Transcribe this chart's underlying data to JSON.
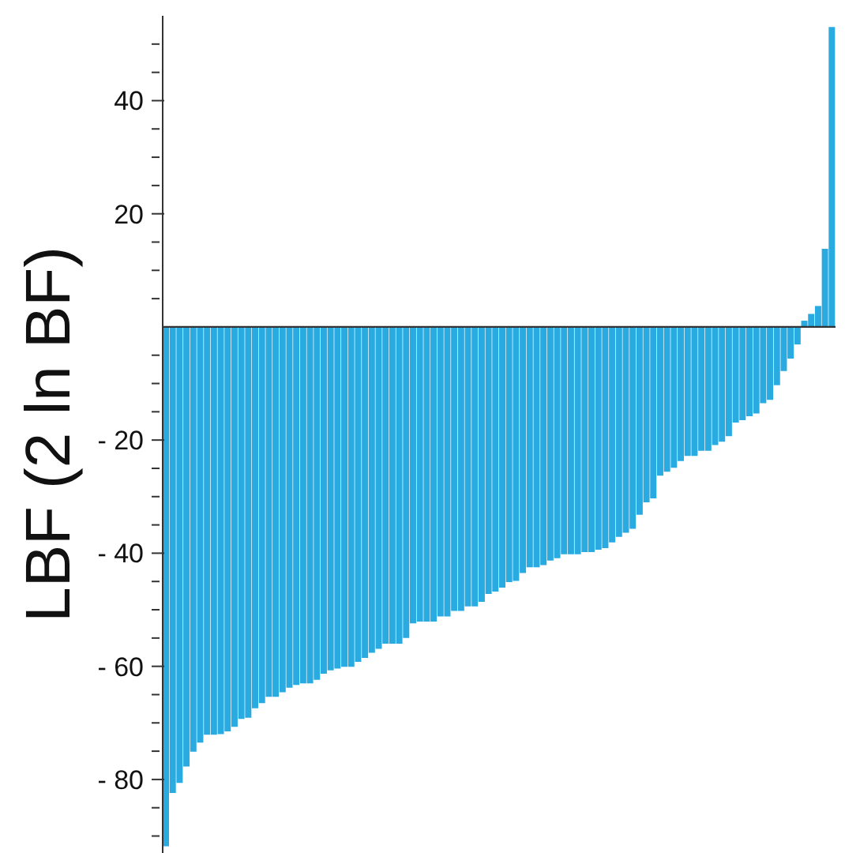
{
  "chart_data": {
    "type": "bar",
    "ylabel": "LBF (2 ln BF)",
    "color": "#29abe2",
    "categories": [
      null,
      null,
      null,
      null,
      null,
      null,
      null,
      null,
      null,
      null,
      null,
      null,
      null,
      null,
      null,
      null,
      null,
      null,
      null,
      null,
      null,
      null,
      null,
      null,
      null,
      null,
      null,
      null,
      null,
      null,
      null,
      null,
      null,
      null,
      null,
      null,
      null,
      null,
      null,
      null,
      null,
      null,
      null,
      null,
      null,
      null,
      null,
      null,
      null,
      null,
      null,
      null,
      null,
      null,
      null,
      null,
      null,
      null,
      null,
      null,
      null,
      null,
      null,
      null,
      null,
      null,
      null,
      null,
      null,
      null,
      null,
      null,
      null,
      null,
      null,
      null,
      null,
      null,
      null,
      null,
      null,
      null,
      null,
      null,
      null,
      null,
      null,
      null,
      null,
      null,
      null,
      null,
      null,
      null,
      null,
      null,
      null,
      null
    ],
    "values": [
      -91.8,
      -82.4,
      -80.6,
      -77.7,
      -75.1,
      -73.5,
      -72.1,
      -72.1,
      -72,
      -71.5,
      -70.7,
      -69.3,
      -69.1,
      -67.4,
      -66.5,
      -65.4,
      -65.4,
      -64.6,
      -63.8,
      -63.3,
      -63,
      -63,
      -62.4,
      -61.3,
      -60.7,
      -60.4,
      -60.1,
      -60.1,
      -59.2,
      -58.5,
      -57.6,
      -56.9,
      -56,
      -56,
      -56,
      -55,
      -52.4,
      -52.1,
      -52.1,
      -52.1,
      -51.2,
      -51.2,
      -50.2,
      -50.2,
      -49.4,
      -49.4,
      -48.6,
      -47.2,
      -46.8,
      -46.1,
      -45.1,
      -44.9,
      -43.5,
      -42.5,
      -42.5,
      -42.1,
      -41.3,
      -40.9,
      -40.2,
      -40.2,
      -40.2,
      -39.8,
      -39.8,
      -39.4,
      -39.1,
      -38.1,
      -37.1,
      -36.4,
      -35.7,
      -33.2,
      -31,
      -30.3,
      -26.3,
      -25.6,
      -24.9,
      -23.7,
      -22.8,
      -22.8,
      -21.9,
      -21.9,
      -20.9,
      -20.3,
      -19.3,
      -16.9,
      -16.5,
      -15.8,
      -15.3,
      -13.5,
      -12.9,
      -10.3,
      -7.8,
      -5.6,
      -3.1,
      1.1,
      2.3,
      3.7,
      13.8,
      53
    ],
    "ylim": [
      -93,
      55
    ],
    "yticks": [
      {
        "value": -90,
        "label": null
      },
      {
        "value": -85,
        "label": null
      },
      {
        "value": -80,
        "label": "- 80"
      },
      {
        "value": -75,
        "label": null
      },
      {
        "value": -70,
        "label": null
      },
      {
        "value": -65,
        "label": null
      },
      {
        "value": -60,
        "label": "- 60"
      },
      {
        "value": -55,
        "label": null
      },
      {
        "value": -50,
        "label": null
      },
      {
        "value": -45,
        "label": null
      },
      {
        "value": -40,
        "label": "- 40"
      },
      {
        "value": -35,
        "label": null
      },
      {
        "value": -30,
        "label": null
      },
      {
        "value": -25,
        "label": null
      },
      {
        "value": -20,
        "label": "- 20"
      },
      {
        "value": -15,
        "label": null
      },
      {
        "value": -10,
        "label": null
      },
      {
        "value": -5,
        "label": null
      },
      {
        "value": 5,
        "label": null
      },
      {
        "value": 10,
        "label": null
      },
      {
        "value": 15,
        "label": null
      },
      {
        "value": 20,
        "label": "20"
      },
      {
        "value": 25,
        "label": null
      },
      {
        "value": 30,
        "label": null
      },
      {
        "value": 35,
        "label": null
      },
      {
        "value": 40,
        "label": "40"
      },
      {
        "value": 45,
        "label": null
      },
      {
        "value": 50,
        "label": null
      }
    ],
    "tick_labels": "y",
    "grid": false,
    "legend": false
  }
}
